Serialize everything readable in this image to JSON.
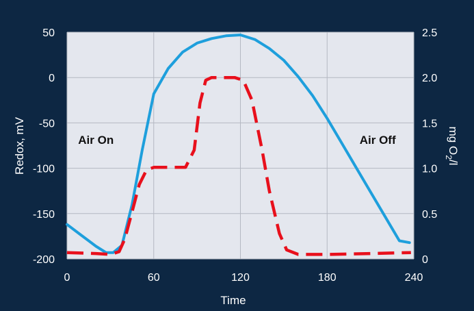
{
  "chart_data": {
    "type": "line",
    "xlabel": "Time",
    "ylabel_left": "Redox, mV",
    "ylabel_right_parts": [
      "mg O",
      "2",
      "/l"
    ],
    "xlim": [
      0,
      240
    ],
    "ylim_left": [
      -200,
      50
    ],
    "ylim_right": [
      0,
      2.5
    ],
    "x_ticks": [
      0,
      60,
      120,
      180,
      240
    ],
    "y_left_ticks": [
      -200,
      -150,
      -100,
      -50,
      0,
      50
    ],
    "y_right_ticks": [
      "0",
      "0.5",
      "1.0",
      "1.5",
      "2.0",
      "2.5"
    ],
    "grid": true,
    "annotations": [
      {
        "text": "Air On",
        "x": 20,
        "y": -73
      },
      {
        "text": "Air Off",
        "x": 215,
        "y": -73
      }
    ],
    "series": [
      {
        "axis": "left",
        "color": "#1e9fdc",
        "style": "solid",
        "points": [
          [
            0,
            -162
          ],
          [
            10,
            -174
          ],
          [
            20,
            -186
          ],
          [
            27,
            -193
          ],
          [
            32,
            -193
          ],
          [
            38,
            -185
          ],
          [
            45,
            -140
          ],
          [
            52,
            -80
          ],
          [
            60,
            -18
          ],
          [
            70,
            10
          ],
          [
            80,
            28
          ],
          [
            90,
            38
          ],
          [
            100,
            43
          ],
          [
            110,
            46
          ],
          [
            120,
            47
          ],
          [
            130,
            42
          ],
          [
            140,
            32
          ],
          [
            150,
            19
          ],
          [
            160,
            1
          ],
          [
            170,
            -20
          ],
          [
            180,
            -45
          ],
          [
            190,
            -72
          ],
          [
            200,
            -99
          ],
          [
            210,
            -126
          ],
          [
            220,
            -153
          ],
          [
            230,
            -180
          ],
          [
            237,
            -182
          ]
        ]
      },
      {
        "axis": "right",
        "color": "#e8101c",
        "style": "dashed",
        "points": [
          [
            0,
            0.07
          ],
          [
            20,
            0.06
          ],
          [
            30,
            0.05
          ],
          [
            36,
            0.08
          ],
          [
            40,
            0.22
          ],
          [
            45,
            0.52
          ],
          [
            50,
            0.82
          ],
          [
            55,
            0.98
          ],
          [
            60,
            1.01
          ],
          [
            70,
            1.01
          ],
          [
            82,
            1.01
          ],
          [
            88,
            1.2
          ],
          [
            92,
            1.72
          ],
          [
            96,
            1.97
          ],
          [
            100,
            2.0
          ],
          [
            116,
            2.0
          ],
          [
            122,
            1.97
          ],
          [
            128,
            1.75
          ],
          [
            135,
            1.2
          ],
          [
            140,
            0.75
          ],
          [
            147,
            0.28
          ],
          [
            152,
            0.1
          ],
          [
            160,
            0.05
          ],
          [
            180,
            0.05
          ],
          [
            210,
            0.06
          ],
          [
            238,
            0.07
          ]
        ]
      }
    ]
  }
}
